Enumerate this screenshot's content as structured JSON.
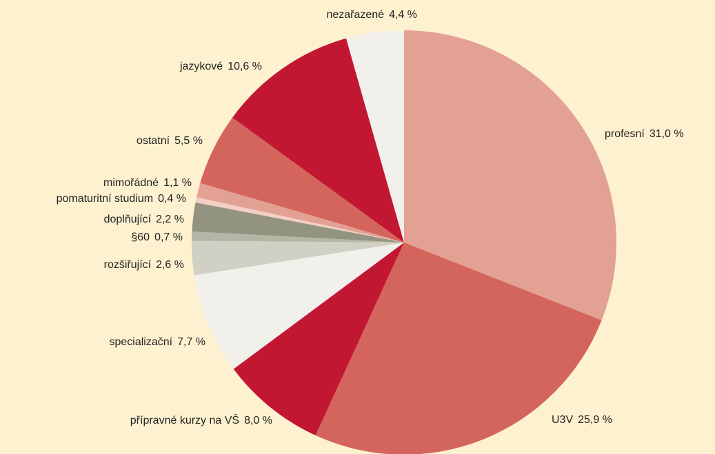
{
  "chart_data": {
    "type": "pie",
    "categories": [
      "profesní",
      "U3V",
      "přípravné kurzy na VŠ",
      "specializační",
      "rozšiřující",
      "§60",
      "doplňující",
      "pomaturitní studium",
      "mimořádné",
      "ostatní",
      "jazykové",
      "nezařazené"
    ],
    "values": [
      31.0,
      25.9,
      8.0,
      7.7,
      2.6,
      0.7,
      2.2,
      0.4,
      1.1,
      5.5,
      10.6,
      4.4
    ],
    "value_labels": [
      "31,0 %",
      "25,9 %",
      "8,0 %",
      "7,7 %",
      "2,6 %",
      "0,7 %",
      "2,2 %",
      "0,4 %",
      "1,1 %",
      "5,5 %",
      "10,6 %",
      "4,4 %"
    ],
    "colors": [
      "#e3a193",
      "#d4655d",
      "#c21732",
      "#f1f0eb",
      "#d1d0c5",
      "#b5b6a6",
      "#939480",
      "#f3cfc8",
      "#e3a193",
      "#d4655d",
      "#c21732",
      "#f1f0eb"
    ]
  }
}
